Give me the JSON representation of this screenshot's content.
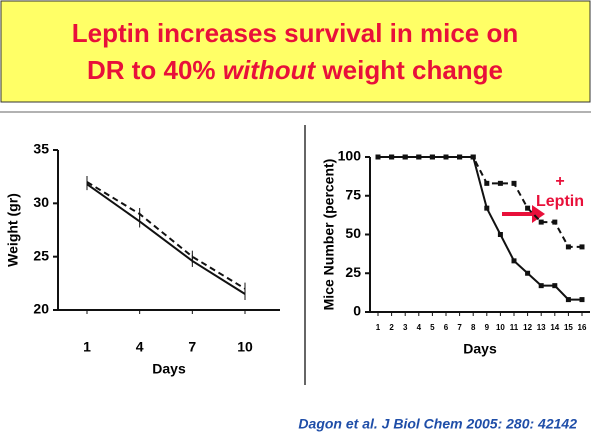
{
  "slide": {
    "title_parts": [
      "Leptin increases survival in mice on",
      "DR to 40% ",
      "without",
      " weight change"
    ],
    "citation": "Dagon et al. J Biol Chem 2005: 280: 42142"
  },
  "chart_data": [
    {
      "type": "line",
      "xlabel": "Days",
      "ylabel": "Weight (gr)",
      "categories": [
        "1",
        "4",
        "7",
        "10"
      ],
      "series": [
        {
          "color": "#111111",
          "dash": false,
          "values": [
            31.8,
            28.3,
            24.6,
            21.5
          ]
        },
        {
          "color": "#111111",
          "dash": true,
          "values": [
            32,
            29,
            25,
            22
          ]
        }
      ],
      "ylim": [
        20,
        35
      ],
      "yticks": [
        20,
        25,
        30,
        35
      ],
      "markers": false
    },
    {
      "type": "line",
      "xlabel": "Days",
      "ylabel": "Mice Number (percent)",
      "categories": [
        "1",
        "2",
        "3",
        "4",
        "5",
        "6",
        "7",
        "8",
        "9",
        "10",
        "11",
        "12",
        "13",
        "14",
        "15",
        "16"
      ],
      "series": [
        {
          "color": "#111111",
          "dash": false,
          "values": [
            100,
            100,
            100,
            100,
            100,
            100,
            100,
            100,
            67,
            50,
            33,
            25,
            17,
            17,
            8,
            8
          ]
        },
        {
          "color": "#111111",
          "dash": true,
          "values": [
            100,
            100,
            100,
            100,
            100,
            100,
            100,
            100,
            83,
            83,
            83,
            67,
            58,
            58,
            42,
            42
          ]
        }
      ],
      "ylim": [
        0,
        100
      ],
      "yticks": [
        0,
        25,
        50,
        75,
        100
      ],
      "markers": true,
      "annotation": {
        "lines": [
          "+",
          "Leptin"
        ],
        "color": "#e8103a"
      }
    }
  ]
}
